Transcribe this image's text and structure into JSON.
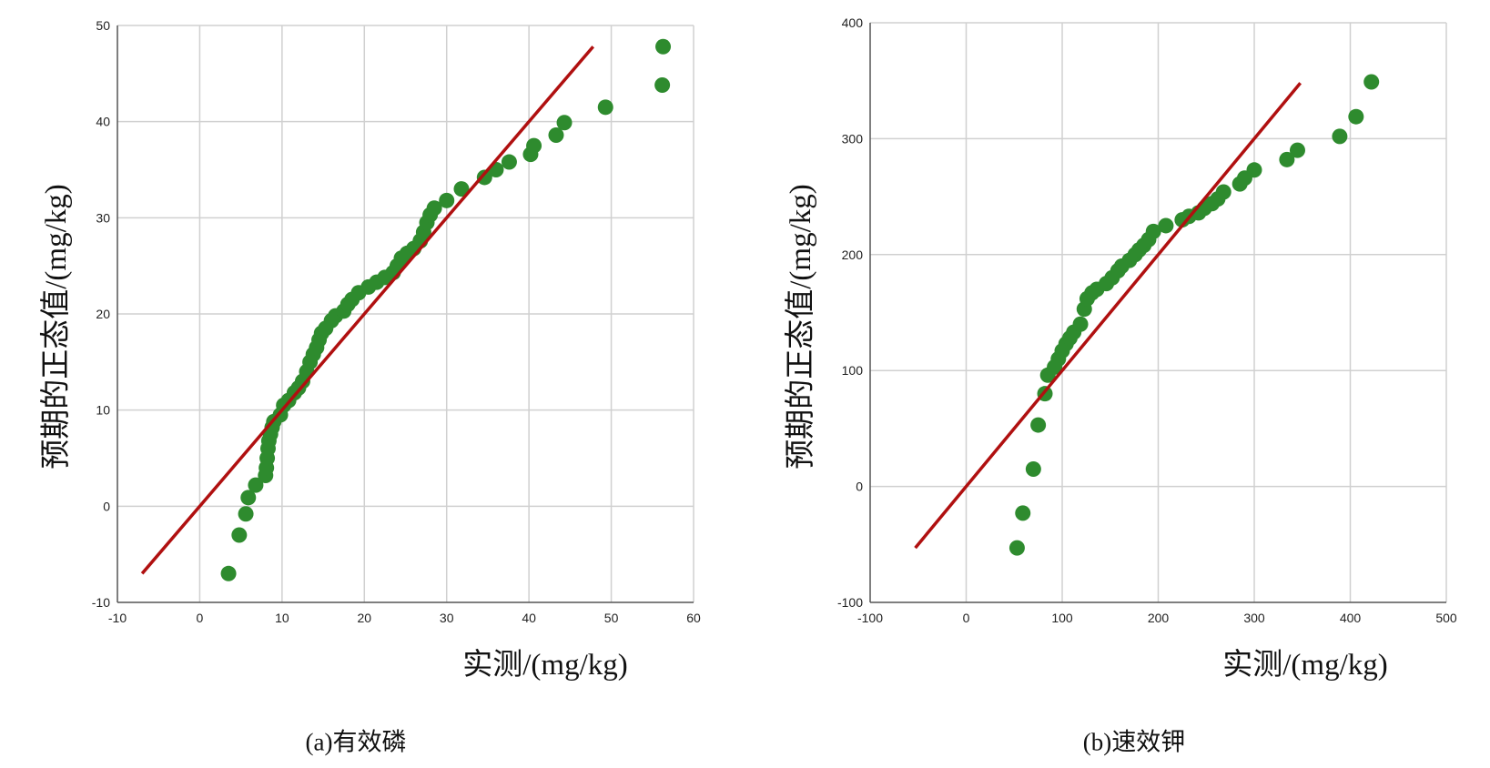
{
  "colors": {
    "points": "#2e8b2e",
    "line": "#b01010",
    "grid": "#d0d0d0",
    "axis": "#555555"
  },
  "chart_data": [
    {
      "type": "scatter",
      "caption": "(a)有效磷",
      "xlabel": "实测/(mg/kg)",
      "ylabel": "预期的正态值/(mg/kg)",
      "xlim": [
        -10,
        60
      ],
      "ylim": [
        -10,
        50
      ],
      "xticks": [
        "-10",
        "0",
        "10",
        "20",
        "30",
        "40",
        "50",
        "60"
      ],
      "yticks": [
        "-10",
        "0",
        "10",
        "20",
        "30",
        "40",
        "50"
      ],
      "grid": true,
      "reference_line": [
        [
          -7,
          -7
        ],
        [
          47.8,
          47.8
        ]
      ],
      "points": [
        [
          3.5,
          -7
        ],
        [
          4.8,
          -3
        ],
        [
          5.6,
          -0.8
        ],
        [
          5.9,
          0.9
        ],
        [
          6.8,
          2.2
        ],
        [
          8,
          3.2
        ],
        [
          8.1,
          4
        ],
        [
          8.2,
          5
        ],
        [
          8.3,
          6
        ],
        [
          8.4,
          6.8
        ],
        [
          8.6,
          7.5
        ],
        [
          8.8,
          8.2
        ],
        [
          9,
          8.8
        ],
        [
          9.8,
          9.5
        ],
        [
          10.2,
          10.5
        ],
        [
          10.8,
          11
        ],
        [
          11.5,
          11.8
        ],
        [
          12,
          12.3
        ],
        [
          12.5,
          13
        ],
        [
          13,
          14
        ],
        [
          13.4,
          15
        ],
        [
          13.8,
          15.8
        ],
        [
          14.2,
          16.5
        ],
        [
          14.5,
          17.3
        ],
        [
          14.8,
          18
        ],
        [
          15.3,
          18.5
        ],
        [
          16,
          19.3
        ],
        [
          16.5,
          19.8
        ],
        [
          17.5,
          20.3
        ],
        [
          18,
          21
        ],
        [
          18.5,
          21.5
        ],
        [
          19.3,
          22.2
        ],
        [
          20.5,
          22.8
        ],
        [
          21.5,
          23.3
        ],
        [
          22.5,
          23.8
        ],
        [
          23.5,
          24.3
        ],
        [
          24,
          25
        ],
        [
          24.5,
          25.8
        ],
        [
          25.2,
          26.3
        ],
        [
          26,
          26.8
        ],
        [
          26.8,
          27.6
        ],
        [
          27.2,
          28.5
        ],
        [
          27.6,
          29.5
        ],
        [
          28,
          30.3
        ],
        [
          28.5,
          31
        ],
        [
          30,
          31.8
        ],
        [
          31.8,
          33
        ],
        [
          34.6,
          34.2
        ],
        [
          36,
          35
        ],
        [
          37.6,
          35.8
        ],
        [
          40.2,
          36.6
        ],
        [
          40.6,
          37.5
        ],
        [
          43.3,
          38.6
        ],
        [
          44.3,
          39.9
        ],
        [
          49.3,
          41.5
        ],
        [
          56.2,
          43.8
        ],
        [
          56.3,
          47.8
        ]
      ]
    },
    {
      "type": "scatter",
      "caption": "(b)速效钾",
      "xlabel": "实测/(mg/kg)",
      "ylabel": "预期的正态值/(mg/kg)",
      "xlim": [
        -100,
        500
      ],
      "ylim": [
        -100,
        400
      ],
      "xticks": [
        "-100",
        "0",
        "100",
        "200",
        "300",
        "400",
        "500"
      ],
      "yticks": [
        "-100",
        "0",
        "100",
        "200",
        "300",
        "400"
      ],
      "grid": true,
      "reference_line": [
        [
          -53,
          -53
        ],
        [
          348,
          348
        ]
      ],
      "points": [
        [
          53,
          -53
        ],
        [
          59,
          -23
        ],
        [
          70,
          15
        ],
        [
          75,
          53
        ],
        [
          82,
          80
        ],
        [
          85,
          96
        ],
        [
          92,
          103
        ],
        [
          96,
          110
        ],
        [
          100,
          117
        ],
        [
          104,
          123
        ],
        [
          108,
          128
        ],
        [
          112,
          133
        ],
        [
          119,
          140
        ],
        [
          123,
          153
        ],
        [
          126,
          162
        ],
        [
          131,
          167
        ],
        [
          136,
          170
        ],
        [
          146,
          175
        ],
        [
          152,
          180
        ],
        [
          158,
          186
        ],
        [
          162,
          190
        ],
        [
          170,
          195
        ],
        [
          176,
          200
        ],
        [
          180,
          204
        ],
        [
          185,
          208
        ],
        [
          190,
          213
        ],
        [
          195,
          220
        ],
        [
          208,
          225
        ],
        [
          225,
          230
        ],
        [
          232,
          233
        ],
        [
          242,
          236
        ],
        [
          248,
          240
        ],
        [
          256,
          244
        ],
        [
          262,
          248
        ],
        [
          268,
          254
        ],
        [
          285,
          261
        ],
        [
          290,
          266
        ],
        [
          300,
          273
        ],
        [
          334,
          282
        ],
        [
          345,
          290
        ],
        [
          389,
          302
        ],
        [
          406,
          319
        ],
        [
          422,
          349
        ]
      ]
    }
  ]
}
